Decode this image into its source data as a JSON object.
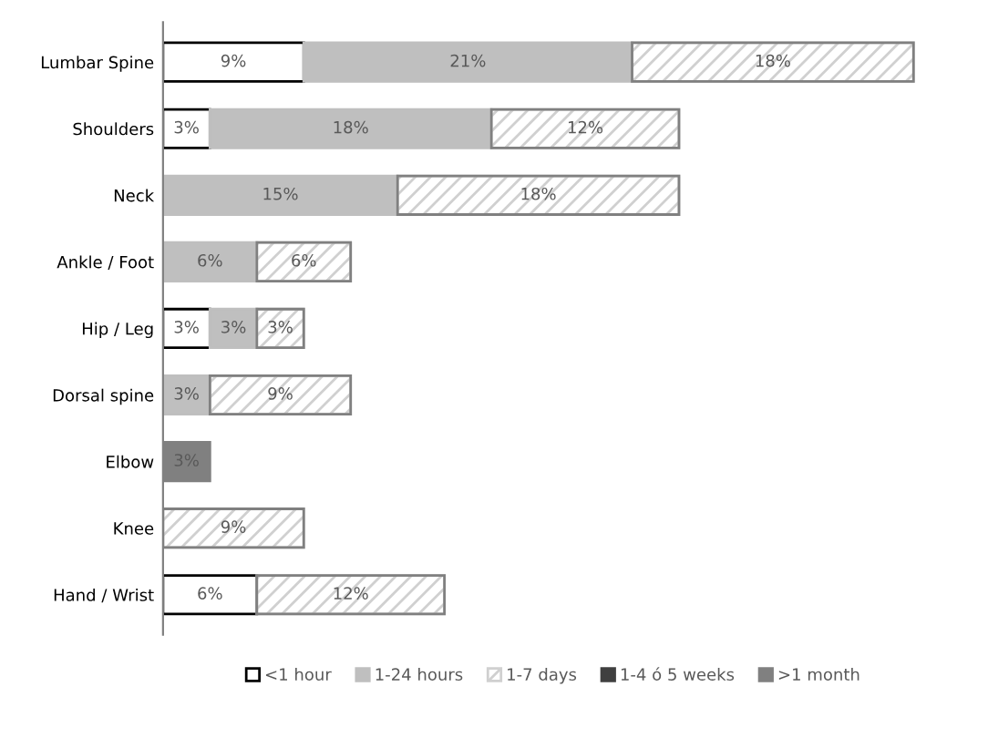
{
  "chart_data": {
    "type": "bar",
    "orientation": "horizontal",
    "stacked": true,
    "legend": "bottom",
    "categories": [
      "Lumbar Spine",
      "Shoulders",
      "Neck",
      "Ankle / Foot",
      "Hip / Leg",
      "Dorsal spine",
      "Elbow",
      "Knee",
      "Hand / Wrist"
    ],
    "series": [
      {
        "name": "<1 hour",
        "color": "#ffffff",
        "values": [
          9,
          3,
          null,
          null,
          3,
          null,
          null,
          null,
          6
        ],
        "value_labels": [
          "9%",
          "3%",
          null,
          null,
          "3%",
          null,
          null,
          null,
          "6%"
        ]
      },
      {
        "name": "1-24 hours",
        "color": "#bfbfbf",
        "values": [
          21,
          18,
          15,
          6,
          3,
          3,
          null,
          null,
          null
        ],
        "value_labels": [
          "21%",
          "18%",
          "15%",
          "6%",
          "3%",
          "3%",
          null,
          null,
          null
        ]
      },
      {
        "name": "1-7 days",
        "color": "#d0d0d0",
        "values": [
          18,
          12,
          18,
          6,
          3,
          9,
          null,
          9,
          12
        ],
        "value_labels": [
          "18%",
          "12%",
          "18%",
          "6%",
          "3%",
          "9%",
          null,
          "9%",
          "12%"
        ]
      },
      {
        "name": "1-4 ó 5 weeks",
        "color": "#404040",
        "values": [
          null,
          null,
          null,
          null,
          null,
          null,
          null,
          null,
          null
        ]
      },
      {
        "name": ">1 month",
        "color": "#808080",
        "values": [
          null,
          null,
          null,
          null,
          null,
          null,
          3,
          null,
          null
        ],
        "value_labels": [
          null,
          null,
          null,
          null,
          null,
          null,
          "3%",
          null,
          null
        ]
      }
    ]
  }
}
